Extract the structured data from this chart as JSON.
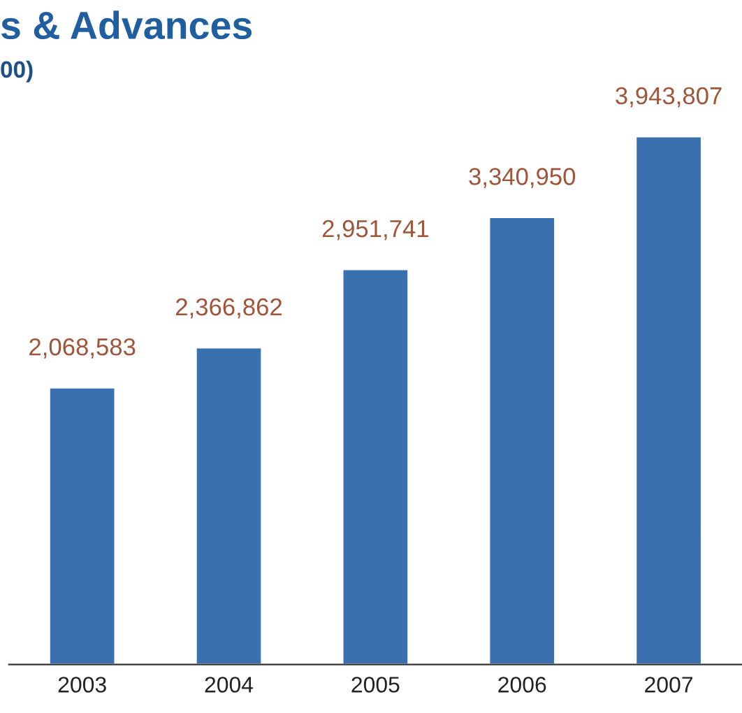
{
  "chart_data": {
    "type": "bar",
    "title": "s & Advances",
    "subtitle": "00)",
    "categories": [
      "2003",
      "2004",
      "2005",
      "2006",
      "2007"
    ],
    "values": [
      2068583,
      2366862,
      2951741,
      3340950,
      3943807
    ],
    "value_labels": [
      "2,068,583",
      "2,366,862",
      "2,951,741",
      "3,340,950",
      "3,943,807"
    ],
    "color": "#3a6fb0",
    "data_labels": true,
    "grid": false,
    "legend": false
  }
}
